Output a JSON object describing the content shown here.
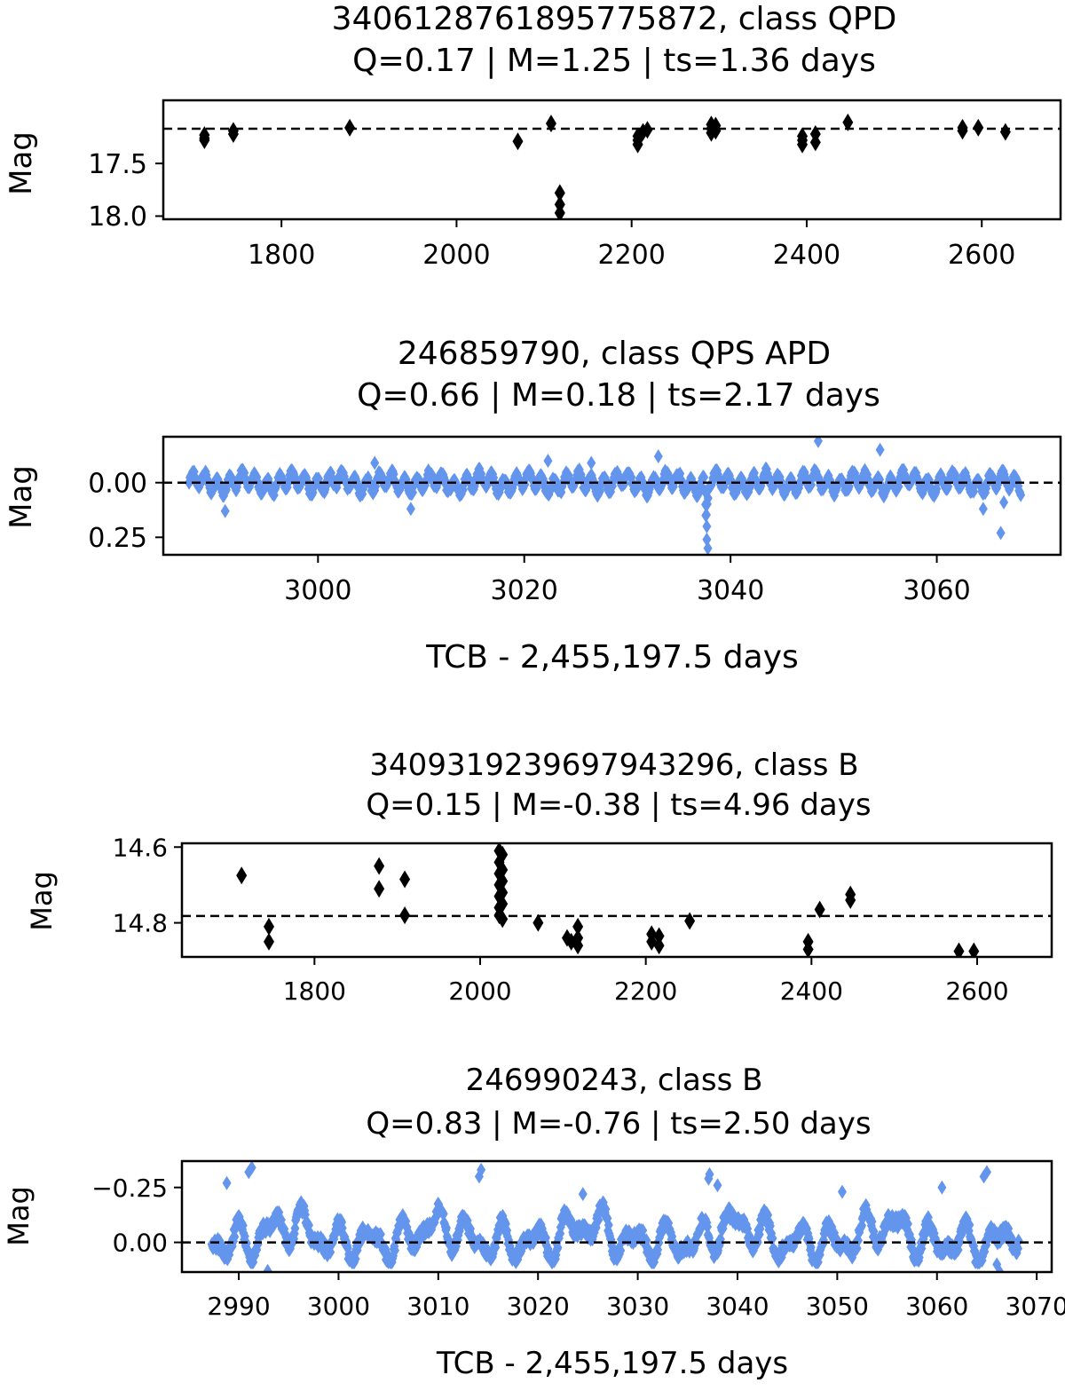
{
  "chart_data": [
    {
      "type": "scatter",
      "title_line1": "3406128761895775872, class QPD",
      "title_line2": "Q=0.17 | M=1.25 | ts=1.36 days",
      "xlabel": "",
      "ylabel": "Mag",
      "xlim": [
        1665,
        2690
      ],
      "ylim": [
        18.03,
        16.9
      ],
      "y_inverted": true,
      "xticks": [
        1800,
        2000,
        2200,
        2400,
        2600
      ],
      "xtick_labels": [
        "1800",
        "2000",
        "2200",
        "2400",
        "2600"
      ],
      "yticks": [
        17.5,
        18.0
      ],
      "ytick_labels": [
        "17.5",
        "18.0"
      ],
      "reference_line": 17.17,
      "marker_color": "#000000",
      "series": [
        {
          "name": "observations",
          "points": [
            [
              1712,
              17.23
            ],
            [
              1712,
              17.26
            ],
            [
              1712,
              17.28
            ],
            [
              1745,
              17.19
            ],
            [
              1745,
              17.22
            ],
            [
              1878,
              17.16
            ],
            [
              2070,
              17.29
            ],
            [
              2108,
              17.12
            ],
            [
              2118,
              17.78
            ],
            [
              2118,
              17.89
            ],
            [
              2118,
              17.97
            ],
            [
              2207,
              17.24
            ],
            [
              2207,
              17.28
            ],
            [
              2207,
              17.32
            ],
            [
              2213,
              17.2
            ],
            [
              2218,
              17.18
            ],
            [
              2291,
              17.13
            ],
            [
              2291,
              17.17
            ],
            [
              2291,
              17.21
            ],
            [
              2296,
              17.14
            ],
            [
              2296,
              17.19
            ],
            [
              2395,
              17.24
            ],
            [
              2395,
              17.28
            ],
            [
              2395,
              17.32
            ],
            [
              2410,
              17.22
            ],
            [
              2410,
              17.3
            ],
            [
              2447,
              17.11
            ],
            [
              2578,
              17.16
            ],
            [
              2578,
              17.19
            ],
            [
              2596,
              17.16
            ],
            [
              2627,
              17.2
            ]
          ]
        }
      ]
    },
    {
      "type": "scatter",
      "title_line1": "246859790, class QPS APD",
      "title_line2": "Q=0.66 | M=0.18 | ts=2.17 days",
      "xlabel": "TCB - 2,455,197.5 days",
      "ylabel": "Mag",
      "xlim": [
        2985,
        3072
      ],
      "ylim": [
        0.33,
        -0.21
      ],
      "y_inverted": true,
      "xticks": [
        3000,
        3020,
        3040,
        3060
      ],
      "xtick_labels": [
        "3000",
        "3020",
        "3040",
        "3060"
      ],
      "yticks": [
        0.0,
        0.25
      ],
      "ytick_labels": [
        "0.00",
        "0.25"
      ],
      "reference_line": 0.0,
      "marker_color": "#6495ED",
      "series": [
        {
          "name": "observations",
          "x_start": 2987.5,
          "x_end": 3068.2,
          "step": 0.08,
          "extra_points": [
            [
              3037.6,
              0.1
            ],
            [
              3037.6,
              0.15
            ],
            [
              3037.7,
              0.2
            ],
            [
              3037.7,
              0.26
            ],
            [
              3037.8,
              0.3
            ],
            [
              3048.5,
              -0.19
            ],
            [
              3054.5,
              -0.15
            ],
            [
              3033.0,
              -0.12
            ],
            [
              3022.3,
              -0.1
            ],
            [
              3026.5,
              -0.09
            ],
            [
              3066.2,
              0.23
            ],
            [
              3066.5,
              0.09
            ],
            [
              3005.5,
              -0.09
            ],
            [
              2991.0,
              0.13
            ],
            [
              3009.0,
              0.12
            ],
            [
              3064.5,
              0.12
            ]
          ]
        }
      ]
    },
    {
      "type": "scatter",
      "title_line1": "3409319239697943296, class B",
      "title_line2": "Q=0.15 | M=-0.38 | ts=4.96 days",
      "xlabel": "",
      "ylabel": "Mag",
      "xlim": [
        1640,
        2690
      ],
      "ylim": [
        14.89,
        14.59
      ],
      "y_inverted": true,
      "xticks": [
        1800,
        2000,
        2200,
        2400,
        2600
      ],
      "xtick_labels": [
        "1800",
        "2000",
        "2200",
        "2400",
        "2600"
      ],
      "yticks": [
        14.6,
        14.8
      ],
      "ytick_labels": [
        "14.6",
        "14.8"
      ],
      "reference_line": 14.782,
      "marker_color": "#000000",
      "series": [
        {
          "name": "observations",
          "points": [
            [
              1712,
              14.675
            ],
            [
              1745,
              14.81
            ],
            [
              1745,
              14.85
            ],
            [
              1878,
              14.65
            ],
            [
              1878,
              14.71
            ],
            [
              1909,
              14.685
            ],
            [
              1909,
              14.78
            ],
            [
              2023,
              14.61
            ],
            [
              2023,
              14.64
            ],
            [
              2023,
              14.67
            ],
            [
              2023,
              14.7
            ],
            [
              2023,
              14.73
            ],
            [
              2023,
              14.76
            ],
            [
              2023,
              14.78
            ],
            [
              2027,
              14.62
            ],
            [
              2027,
              14.66
            ],
            [
              2027,
              14.69
            ],
            [
              2027,
              14.72
            ],
            [
              2027,
              14.75
            ],
            [
              2027,
              14.79
            ],
            [
              2070,
              14.8
            ],
            [
              2105,
              14.84
            ],
            [
              2110,
              14.85
            ],
            [
              2118,
              14.81
            ],
            [
              2118,
              14.84
            ],
            [
              2118,
              14.86
            ],
            [
              2207,
              14.83
            ],
            [
              2207,
              14.85
            ],
            [
              2216,
              14.835
            ],
            [
              2216,
              14.86
            ],
            [
              2253,
              14.795
            ],
            [
              2396,
              14.85
            ],
            [
              2396,
              14.87
            ],
            [
              2410,
              14.765
            ],
            [
              2447,
              14.725
            ],
            [
              2447,
              14.74
            ],
            [
              2578,
              14.875
            ],
            [
              2596,
              14.875
            ]
          ]
        }
      ]
    },
    {
      "type": "scatter",
      "title_line1": "246990243, class B",
      "title_line2": "Q=0.83 | M=-0.76 | ts=2.50 days",
      "xlabel": "TCB - 2,455,197.5 days",
      "ylabel": "Mag",
      "xlim": [
        2984.3,
        3071.5
      ],
      "ylim": [
        0.135,
        -0.37
      ],
      "y_inverted": true,
      "xticks": [
        2990,
        3000,
        3010,
        3020,
        3030,
        3040,
        3050,
        3060,
        3070
      ],
      "xtick_labels": [
        "2990",
        "3000",
        "3010",
        "3020",
        "3030",
        "3040",
        "3050",
        "3060",
        "3070"
      ],
      "yticks": [
        -0.25,
        0.0
      ],
      "ytick_labels": [
        "−0.25",
        "0.00"
      ],
      "reference_line": 0.0,
      "marker_color": "#6495ED",
      "series": [
        {
          "name": "observations",
          "x_start": 2987.3,
          "x_end": 3068.2,
          "step": 0.06,
          "extra_points": [
            [
              2991.0,
              -0.32
            ],
            [
              2991.3,
              -0.34
            ],
            [
              2988.8,
              -0.27
            ],
            [
              2992.9,
              0.13
            ],
            [
              3014.1,
              -0.3
            ],
            [
              3014.3,
              -0.33
            ],
            [
              3037.1,
              -0.29
            ],
            [
              3037.2,
              -0.31
            ],
            [
              3038.0,
              -0.26
            ],
            [
              3050.5,
              -0.23
            ],
            [
              3060.5,
              -0.25
            ],
            [
              3064.7,
              -0.3
            ],
            [
              3065.0,
              -0.32
            ],
            [
              3066.0,
              0.1
            ],
            [
              3066.3,
              0.135
            ],
            [
              3024.5,
              -0.22
            ]
          ]
        }
      ]
    }
  ]
}
